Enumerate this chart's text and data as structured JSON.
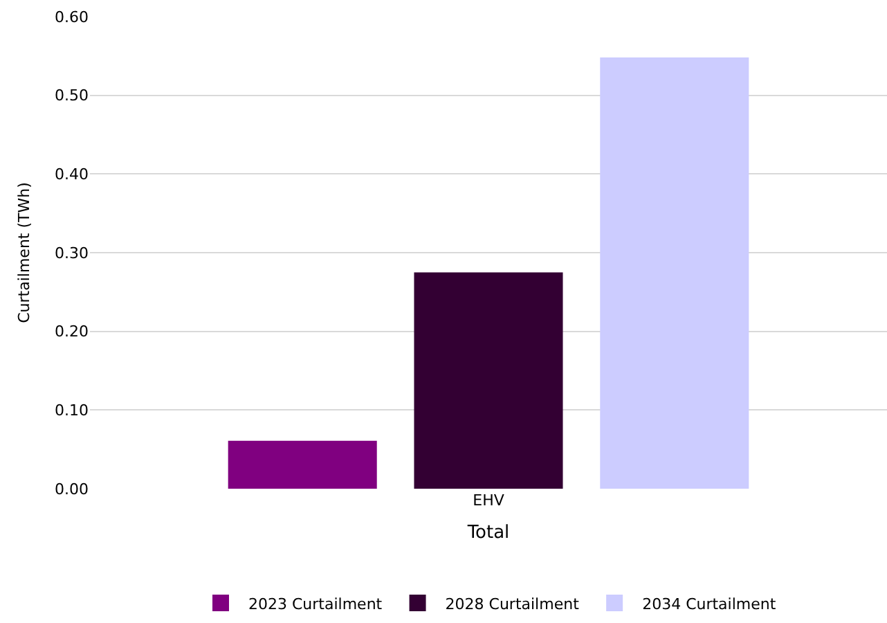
{
  "chart_data": {
    "type": "bar",
    "ylabel": "Curtailment (TWh)",
    "xlabel": "Total",
    "categories": [
      "EHV"
    ],
    "series": [
      {
        "name": "2023 Curtailment",
        "color": "#800080",
        "values": [
          0.061
        ]
      },
      {
        "name": "2028 Curtailment",
        "color": "#330033",
        "values": [
          0.275
        ]
      },
      {
        "name": "2034 Curtailment",
        "color": "#ccccff",
        "values": [
          0.548
        ]
      }
    ],
    "ylim": [
      0,
      0.6
    ],
    "yticks": [
      {
        "value": 0,
        "label": "0.00"
      },
      {
        "value": 0.1,
        "label": "0.10"
      },
      {
        "value": 0.2,
        "label": "0.20"
      },
      {
        "value": 0.3,
        "label": "0.30"
      },
      {
        "value": 0.4,
        "label": "0.40"
      },
      {
        "value": 0.5,
        "label": "0.50"
      },
      {
        "value": 0.6,
        "label": "0.60"
      }
    ],
    "grid": "y",
    "legend": "bottom"
  }
}
